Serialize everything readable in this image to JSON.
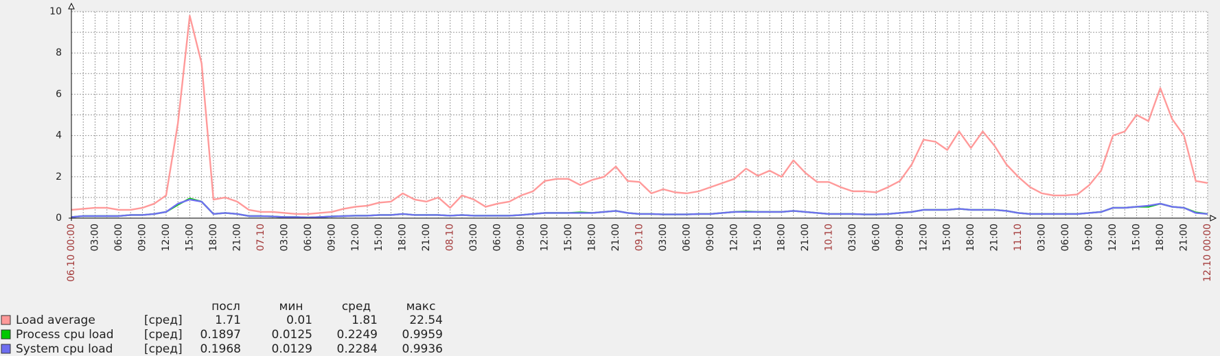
{
  "chart_data": {
    "type": "line",
    "categories": [
      "06.10 00:00",
      null,
      "03:00",
      null,
      "06:00",
      null,
      "09:00",
      null,
      "12:00",
      null,
      "15:00",
      null,
      "18:00",
      null,
      "21:00",
      null,
      "07.10",
      null,
      "03:00",
      null,
      "06:00",
      null,
      "09:00",
      null,
      "12:00",
      null,
      "15:00",
      null,
      "18:00",
      null,
      "21:00",
      null,
      "08.10",
      null,
      "03:00",
      null,
      "06:00",
      null,
      "09:00",
      null,
      "12:00",
      null,
      "15:00",
      null,
      "18:00",
      null,
      "21:00",
      null,
      "09.10",
      null,
      "03:00",
      null,
      "06:00",
      null,
      "09:00",
      null,
      "12:00",
      null,
      "15:00",
      null,
      "18:00",
      null,
      "21:00",
      null,
      "10.10",
      null,
      "03:00",
      null,
      "06:00",
      null,
      "09:00",
      null,
      "12:00",
      null,
      "15:00",
      null,
      "18:00",
      null,
      "21:00",
      null,
      "11.10",
      null,
      "03:00",
      null,
      "06:00",
      null,
      "09:00",
      null,
      "12:00",
      null,
      "15:00",
      null,
      "18:00",
      null,
      "21:00",
      null,
      "12.10 00:00"
    ],
    "date_label_color": "#a33a3a",
    "ylim": [
      0,
      10
    ],
    "yticks": [
      0,
      2,
      4,
      6,
      8,
      10
    ],
    "y_minor_ticks": [
      1,
      3,
      5,
      7,
      9
    ],
    "grid": true,
    "legend_headers": [
      "посл",
      "мин",
      "сред",
      "макс"
    ],
    "series": [
      {
        "name": "Load average",
        "func": "[сред]",
        "color": "#ff9999",
        "stats": [
          1.71,
          0.01,
          1.81,
          22.54
        ],
        "values": [
          0.4,
          0.45,
          0.5,
          0.5,
          0.4,
          0.4,
          0.5,
          0.7,
          1.1,
          4.6,
          9.8,
          7.5,
          0.9,
          1.0,
          0.8,
          0.4,
          0.3,
          0.3,
          0.25,
          0.2,
          0.2,
          0.25,
          0.3,
          0.45,
          0.55,
          0.6,
          0.75,
          0.8,
          1.2,
          0.9,
          0.8,
          1.0,
          0.5,
          1.1,
          0.9,
          0.55,
          0.7,
          0.8,
          1.1,
          1.3,
          1.8,
          1.9,
          1.9,
          1.6,
          1.85,
          2.0,
          2.5,
          1.8,
          1.75,
          1.2,
          1.4,
          1.25,
          1.2,
          1.3,
          1.5,
          1.7,
          1.9,
          2.4,
          2.05,
          2.3,
          2.0,
          2.8,
          2.2,
          1.75,
          1.75,
          1.5,
          1.3,
          1.3,
          1.25,
          1.5,
          1.8,
          2.6,
          3.8,
          3.7,
          3.3,
          4.2,
          3.4,
          4.2,
          3.5,
          2.6,
          2.0,
          1.5,
          1.2,
          1.1,
          1.1,
          1.15,
          1.6,
          2.3,
          4.0,
          4.2,
          5.0,
          4.7,
          6.3,
          4.8,
          4.0,
          1.8,
          1.7
        ]
      },
      {
        "name": "Process cpu load",
        "func": "[сред]",
        "color": "#00c800",
        "stats": [
          0.1897,
          0.0125,
          0.2249,
          0.9959
        ],
        "values": [
          0.05,
          0.1,
          0.1,
          0.1,
          0.1,
          0.15,
          0.15,
          0.2,
          0.3,
          0.65,
          0.95,
          0.8,
          0.2,
          0.25,
          0.2,
          0.1,
          0.1,
          0.08,
          0.05,
          0.05,
          0.03,
          0.05,
          0.08,
          0.1,
          0.12,
          0.12,
          0.15,
          0.15,
          0.2,
          0.15,
          0.15,
          0.15,
          0.12,
          0.15,
          0.12,
          0.12,
          0.12,
          0.12,
          0.15,
          0.2,
          0.25,
          0.25,
          0.25,
          0.28,
          0.25,
          0.3,
          0.35,
          0.25,
          0.2,
          0.2,
          0.18,
          0.18,
          0.18,
          0.2,
          0.2,
          0.25,
          0.3,
          0.32,
          0.3,
          0.3,
          0.3,
          0.35,
          0.3,
          0.25,
          0.2,
          0.2,
          0.2,
          0.18,
          0.18,
          0.2,
          0.25,
          0.3,
          0.4,
          0.4,
          0.4,
          0.45,
          0.4,
          0.4,
          0.4,
          0.35,
          0.25,
          0.2,
          0.2,
          0.2,
          0.2,
          0.2,
          0.25,
          0.3,
          0.5,
          0.5,
          0.55,
          0.55,
          0.7,
          0.55,
          0.5,
          0.28,
          0.2
        ]
      },
      {
        "name": "System cpu load",
        "func": "[сред]",
        "color": "#6e6ef0",
        "stats": [
          0.1968,
          0.0129,
          0.2284,
          0.9936
        ],
        "values": [
          0.05,
          0.1,
          0.1,
          0.1,
          0.1,
          0.15,
          0.15,
          0.2,
          0.3,
          0.7,
          0.9,
          0.8,
          0.2,
          0.25,
          0.2,
          0.1,
          0.1,
          0.08,
          0.05,
          0.05,
          0.03,
          0.05,
          0.08,
          0.1,
          0.12,
          0.12,
          0.15,
          0.15,
          0.2,
          0.15,
          0.15,
          0.15,
          0.12,
          0.15,
          0.12,
          0.12,
          0.12,
          0.12,
          0.15,
          0.2,
          0.25,
          0.25,
          0.25,
          0.25,
          0.25,
          0.3,
          0.35,
          0.25,
          0.2,
          0.2,
          0.18,
          0.18,
          0.18,
          0.2,
          0.2,
          0.25,
          0.3,
          0.3,
          0.3,
          0.3,
          0.3,
          0.35,
          0.3,
          0.25,
          0.2,
          0.2,
          0.2,
          0.18,
          0.18,
          0.2,
          0.25,
          0.3,
          0.4,
          0.4,
          0.4,
          0.45,
          0.4,
          0.4,
          0.4,
          0.35,
          0.25,
          0.2,
          0.2,
          0.2,
          0.2,
          0.2,
          0.25,
          0.3,
          0.5,
          0.5,
          0.55,
          0.6,
          0.7,
          0.55,
          0.5,
          0.25,
          0.2
        ]
      }
    ]
  }
}
